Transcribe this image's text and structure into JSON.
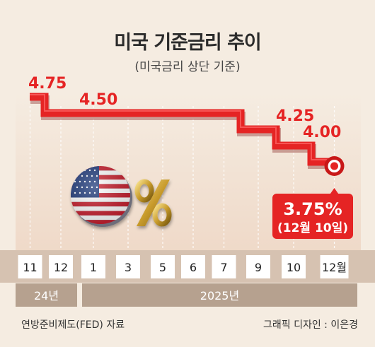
{
  "title": "미국 기준금리 추이",
  "subtitle": "(미국금리 상단 기준)",
  "source": "연방준비제도(FED) 자료",
  "credit": "그래픽 디자인 : 이은경",
  "chart_data": {
    "type": "line",
    "step": true,
    "categories": [
      "11",
      "12",
      "1",
      "3",
      "5",
      "6",
      "7",
      "9",
      "10",
      "12월"
    ],
    "year_groups": [
      {
        "label": "24년",
        "categories": [
          "11",
          "12"
        ]
      },
      {
        "label": "2025년",
        "categories": [
          "1",
          "3",
          "5",
          "6",
          "7",
          "9",
          "10",
          "12월"
        ]
      }
    ],
    "series": [
      {
        "values": [
          4.75,
          4.5,
          4.5,
          4.5,
          4.5,
          4.5,
          4.5,
          4.25,
          4.0,
          3.75
        ]
      }
    ],
    "value_labels": [
      "4.75",
      "4.50",
      "4.25",
      "4.00"
    ],
    "callout": {
      "value": "3.75%",
      "date": "(12월 10일)"
    },
    "colors": {
      "line": "#e52424",
      "callout": "#e52424",
      "axis_band": "#d6c2b1"
    },
    "icons": [
      "us-flag-coin-icon",
      "percent-sign-icon"
    ],
    "grid": "vertical dashed",
    "legend": "none"
  }
}
